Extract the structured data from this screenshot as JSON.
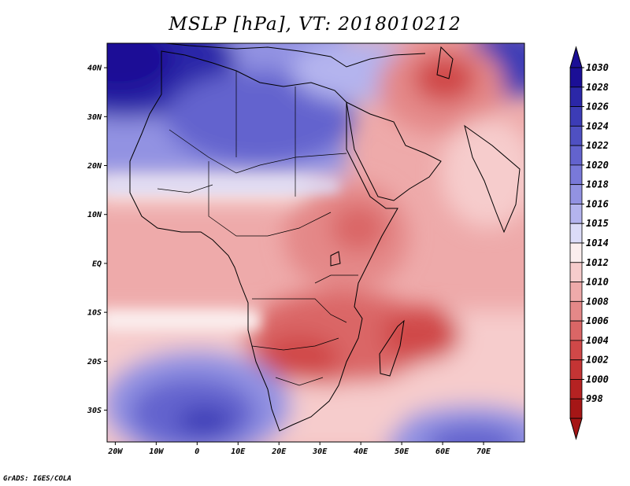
{
  "title": "MSLP [hPa], VT: 2018010212",
  "credit": "GrADS: IGES/COLA",
  "axes": {
    "lat_labels": [
      "40N",
      "30N",
      "20N",
      "10N",
      "EQ",
      "10S",
      "20S",
      "30S"
    ],
    "lon_labels": [
      "20W",
      "10W",
      "0",
      "10E",
      "20E",
      "30E",
      "40E",
      "50E",
      "60E",
      "70E"
    ],
    "lat_values": [
      40,
      30,
      20,
      10,
      0,
      -10,
      -20,
      -30
    ],
    "lon_values": [
      -20,
      -10,
      0,
      10,
      20,
      30,
      40,
      50,
      60,
      70
    ],
    "lon_range": [
      -22,
      80
    ],
    "lat_range": [
      -36.5,
      45
    ]
  },
  "colorbar": {
    "levels": [
      "1030",
      "1028",
      "1026",
      "1024",
      "1022",
      "1020",
      "1018",
      "1016",
      "1015",
      "1014",
      "1012",
      "1010",
      "1008",
      "1006",
      "1004",
      "1002",
      "1000",
      "998"
    ],
    "colors": [
      "#1b0f96",
      "#2b27a8",
      "#3c3cb6",
      "#4f50c2",
      "#6363ce",
      "#7979d9",
      "#9292e2",
      "#b4b4ee",
      "#dcdcf8",
      "#fbeeee",
      "#f6cccc",
      "#eeaaaa",
      "#e48888",
      "#da6666",
      "#d04848",
      "#c43434",
      "#b52222",
      "#a51616"
    ],
    "top_color": "#1b0f96",
    "bottom_color": "#a51616"
  },
  "field_regions": [
    {
      "name": "high-northwest",
      "lon": -20,
      "lat": 40,
      "hpa": 1030
    },
    {
      "name": "high-sahara",
      "lon": 15,
      "lat": 28,
      "hpa": 1022
    },
    {
      "name": "high-south-atlantic",
      "lon": 0,
      "lat": -30,
      "hpa": 1026
    },
    {
      "name": "high-south-indian",
      "lon": 65,
      "lat": -34,
      "hpa": 1024
    },
    {
      "name": "low-iran",
      "lon": 62,
      "lat": 37,
      "hpa": 1006
    },
    {
      "name": "low-madagascar",
      "lon": 55,
      "lat": -15,
      "hpa": 1004
    },
    {
      "name": "low-east-africa",
      "lon": 40,
      "lat": 8,
      "hpa": 1006
    },
    {
      "name": "low-southern-africa",
      "lon": 28,
      "lat": -18,
      "hpa": 1006
    }
  ]
}
